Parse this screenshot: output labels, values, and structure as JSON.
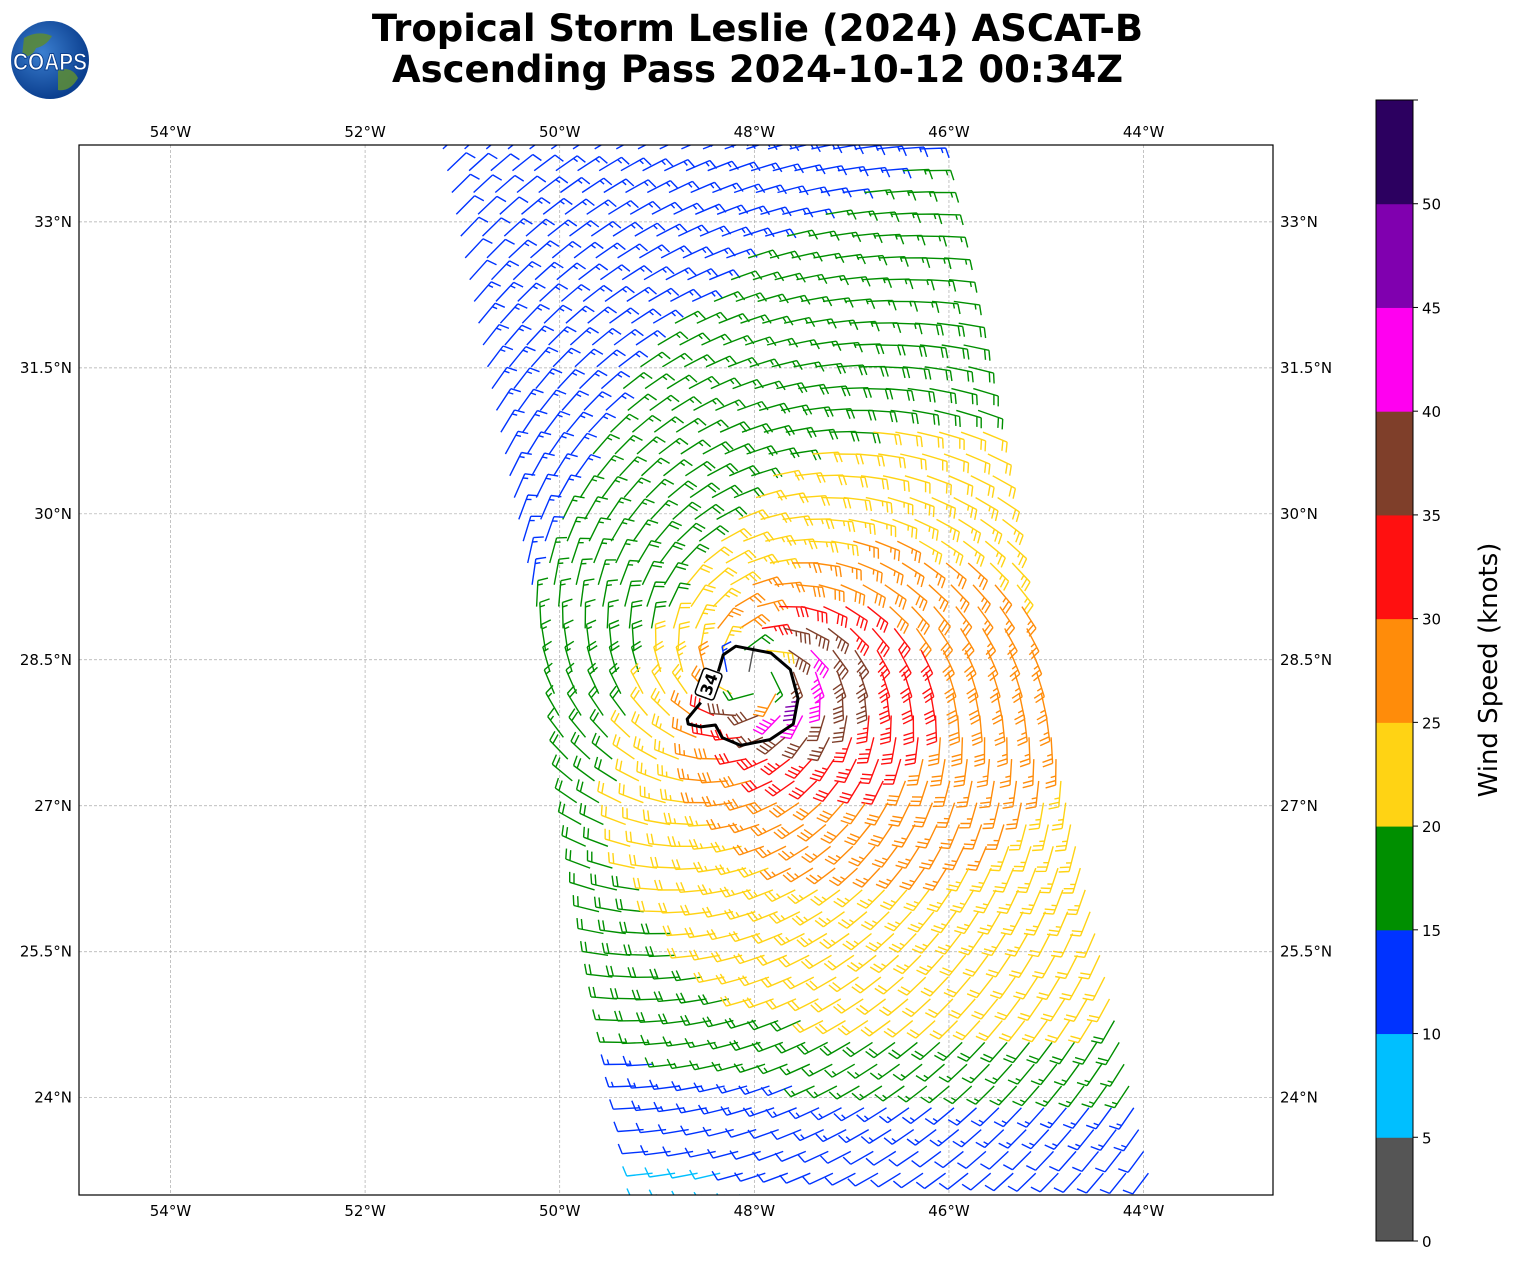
{
  "logo": {
    "text": "COAPS"
  },
  "title": {
    "line1": "Tropical Storm Leslie (2024) ASCAT-B",
    "line2": "Ascending Pass 2024-10-12 00:34Z"
  },
  "chart_data": {
    "type": "wind-barb",
    "title": "Tropical Storm Leslie (2024) ASCAT-B Ascending Pass 2024-10-12 00:34Z",
    "xlim": [
      -54.94,
      -42.67
    ],
    "ylim": [
      23.0,
      33.79
    ],
    "grid": true,
    "x_ticks": [
      {
        "v": -54,
        "label": "54°W"
      },
      {
        "v": -52,
        "label": "52°W"
      },
      {
        "v": -50,
        "label": "50°W"
      },
      {
        "v": -48,
        "label": "48°W"
      },
      {
        "v": -46,
        "label": "46°W"
      },
      {
        "v": -44,
        "label": "44°W"
      }
    ],
    "y_ticks": [
      {
        "v": 33,
        "label": "33°N"
      },
      {
        "v": 31.5,
        "label": "31.5°N"
      },
      {
        "v": 30,
        "label": "30°N"
      },
      {
        "v": 28.5,
        "label": "28.5°N"
      },
      {
        "v": 27,
        "label": "27°N"
      },
      {
        "v": 25.5,
        "label": "25.5°N"
      },
      {
        "v": 24,
        "label": "24°N"
      }
    ],
    "swath": {
      "corners": {
        "top_left": [
          -51.2,
          33.75
        ],
        "top_right": [
          -46.3,
          33.75
        ],
        "bottom_left": [
          -49.0,
          23.0
        ],
        "bottom_right": [
          -43.9,
          23.0
        ]
      },
      "rows": 48,
      "cols": 22
    },
    "storm": {
      "center_lon": -48.0,
      "center_lat": 28.35,
      "max_wind_kt": 37,
      "radius_max_wind_deg": 0.45
    },
    "contour": {
      "level_label": "34",
      "label_position": [
        -48.47,
        28.25
      ],
      "points": [
        [
          -48.55,
          28.06
        ],
        [
          -48.69,
          27.89
        ],
        [
          -48.68,
          27.84
        ],
        [
          -48.55,
          27.81
        ],
        [
          -48.4,
          27.83
        ],
        [
          -48.33,
          27.7
        ],
        [
          -48.14,
          27.62
        ],
        [
          -47.84,
          27.68
        ],
        [
          -47.6,
          27.84
        ],
        [
          -47.55,
          28.1
        ],
        [
          -47.63,
          28.4
        ],
        [
          -47.83,
          28.57
        ],
        [
          -48.19,
          28.64
        ],
        [
          -48.32,
          28.55
        ],
        [
          -48.37,
          28.38
        ]
      ]
    },
    "colorbar": {
      "label": "Wind Speed (knots)",
      "range": [
        0,
        55
      ],
      "tick_values": [
        0,
        5,
        10,
        15,
        20,
        25,
        30,
        35,
        40,
        45,
        50
      ],
      "tick_labels": [
        "0",
        "5",
        "10",
        "15",
        "20",
        "25",
        "30",
        "35",
        "40",
        "45",
        "50"
      ],
      "bins": [
        {
          "min": 0,
          "max": 5,
          "color": "#555555"
        },
        {
          "min": 5,
          "max": 10,
          "color": "#00BFFF"
        },
        {
          "min": 10,
          "max": 15,
          "color": "#0033FF"
        },
        {
          "min": 15,
          "max": 20,
          "color": "#008F00"
        },
        {
          "min": 20,
          "max": 25,
          "color": "#FFD314"
        },
        {
          "min": 25,
          "max": 30,
          "color": "#FF8C0A"
        },
        {
          "min": 30,
          "max": 35,
          "color": "#FF1010"
        },
        {
          "min": 35,
          "max": 40,
          "color": "#7F3F2A"
        },
        {
          "min": 40,
          "max": 45,
          "color": "#FF00F0"
        },
        {
          "min": 45,
          "max": 50,
          "color": "#8000AF"
        },
        {
          "min": 50,
          "max": 55,
          "color": "#2C0060"
        }
      ]
    }
  }
}
